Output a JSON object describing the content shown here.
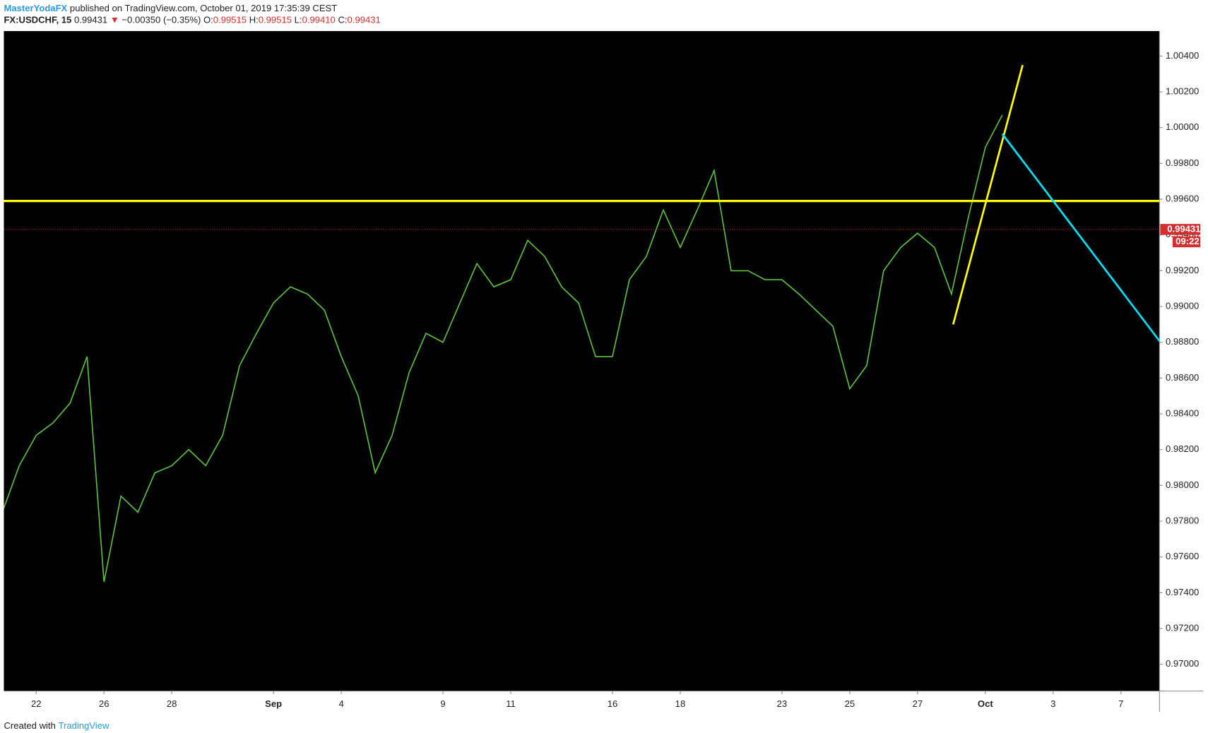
{
  "header": {
    "author": "MasterYodaFX",
    "published": "published on TradingView.com, October 01, 2019 17:35:39 CEST",
    "symbol": "FX:USDCHF, 15",
    "price": "0.99431",
    "change": "−0.00350 (−0.35%)",
    "ohlc": [
      {
        "label": "O:",
        "value": "0.99515"
      },
      {
        "label": "H:",
        "value": "0.99515"
      },
      {
        "label": "L:",
        "value": "0.99410"
      },
      {
        "label": "C:",
        "value": "0.99431"
      }
    ]
  },
  "chart_data": {
    "type": "line",
    "color": "#5fc23e",
    "categories": [
      null,
      null,
      "22",
      null,
      null,
      null,
      "26",
      null,
      null,
      null,
      "28",
      null,
      null,
      null,
      null,
      null,
      "Sep",
      null,
      null,
      null,
      "4",
      null,
      null,
      null,
      null,
      null,
      "9",
      null,
      null,
      null,
      "11",
      null,
      null,
      null,
      null,
      null,
      "16",
      null,
      null,
      null,
      "18",
      null,
      null,
      null,
      null,
      null,
      "23",
      null,
      null,
      null,
      "25",
      null,
      null,
      null,
      "27",
      null,
      null,
      null,
      "Oct",
      null,
      null,
      null,
      "3",
      null,
      null,
      null,
      "7",
      null,
      null
    ],
    "values": [
      0.9785,
      0.9811,
      0.9828,
      0.9835,
      0.9846,
      0.9872,
      0.9746,
      0.9794,
      0.9785,
      0.9807,
      0.9811,
      0.982,
      0.9811,
      0.9828,
      0.9867,
      0.9885,
      0.9902,
      0.9911,
      0.9907,
      0.9898,
      0.9872,
      0.985,
      0.9807,
      0.9828,
      0.9863,
      0.9885,
      0.988,
      0.9902,
      0.9924,
      0.9911,
      0.9915,
      0.9937,
      0.9928,
      0.9911,
      0.9902,
      0.9872,
      0.9872,
      0.9915,
      0.9928,
      0.9954,
      0.9933,
      0.9954,
      0.9976,
      0.992,
      0.992,
      0.9915,
      0.9915,
      0.9907,
      0.9898,
      0.9889,
      0.9854,
      0.9867,
      0.992,
      0.9933,
      0.9941,
      0.9933,
      0.9907,
      0.995,
      0.9989,
      1.0007,
      null,
      null,
      null,
      null,
      null,
      null,
      null,
      null,
      null
    ],
    "ylim": [
      0.9685,
      1.0054
    ],
    "yticks": [
      {
        "value": 0.97,
        "label": "0.97000"
      },
      {
        "value": 0.972,
        "label": "0.97200"
      },
      {
        "value": 0.974,
        "label": "0.97400"
      },
      {
        "value": 0.976,
        "label": "0.97600"
      },
      {
        "value": 0.978,
        "label": "0.97800"
      },
      {
        "value": 0.98,
        "label": "0.98000"
      },
      {
        "value": 0.982,
        "label": "0.98200"
      },
      {
        "value": 0.984,
        "label": "0.98400"
      },
      {
        "value": 0.986,
        "label": "0.98600"
      },
      {
        "value": 0.988,
        "label": "0.98800"
      },
      {
        "value": 0.99,
        "label": "0.99000"
      },
      {
        "value": 0.992,
        "label": "0.99200"
      },
      {
        "value": 0.994,
        "label": "0.99400"
      },
      {
        "value": 0.996,
        "label": "0.99600"
      },
      {
        "value": 0.998,
        "label": "0.99800"
      },
      {
        "value": 1.0,
        "label": "1.00000"
      },
      {
        "value": 1.002,
        "label": "1.00200"
      },
      {
        "value": 1.004,
        "label": "1.00400"
      }
    ],
    "last_price": {
      "value": 0.99431,
      "label": "0.99431"
    },
    "countdown": "09:22",
    "hlines": [
      {
        "value": 0.9959,
        "color": "#ffff00"
      }
    ],
    "trendlines": [
      {
        "color": "#ffff00",
        "x": [
          56.1,
          60.2
        ],
        "y": [
          0.989,
          1.0035
        ]
      },
      {
        "color": "#00e0ff",
        "x": [
          59,
          68.3
        ],
        "y": [
          0.99965,
          0.98804
        ]
      }
    ]
  },
  "footer": {
    "text": "Created with",
    "brand": "TradingView"
  }
}
